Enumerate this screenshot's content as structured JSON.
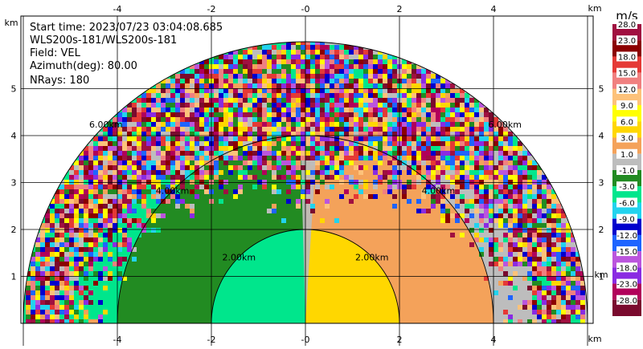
{
  "info": {
    "start_time": "Start time: 2023/07/23 03:04:08.685",
    "instrument": "WLS200s-181/WLS200s-181",
    "field": "Field: VEL",
    "azimuth": "Azimuth(deg): 80.00",
    "nrays": "NRays: 180"
  },
  "chart_data": {
    "type": "heatmap",
    "projection": "rhi-polar",
    "title": "",
    "x_unit": "km",
    "y_unit": "km",
    "x_range": [
      -6,
      6
    ],
    "y_range": [
      0,
      5.9
    ],
    "max_range_km": 6,
    "x_ticks": [
      -4,
      -2,
      0,
      2,
      4
    ],
    "x_tick_labels": [
      "-4",
      "-2",
      "-0",
      "2",
      "4"
    ],
    "y_ticks": [
      1,
      2,
      3,
      4,
      5
    ],
    "y_tick_labels": [
      "1",
      "2",
      "3",
      "4",
      "5"
    ],
    "range_rings": [
      {
        "radius_km": 2,
        "label": "2.00km"
      },
      {
        "radius_km": 4,
        "label": "4.00km"
      },
      {
        "radius_km": 6,
        "label": "6.00km"
      }
    ],
    "grid": true,
    "colorbar": {
      "unit": "m/s",
      "placement": "right",
      "min": -28.0,
      "max": 28.0,
      "bins": [
        {
          "label": "-28.0",
          "color": "#7a0a2e"
        },
        {
          "label": "-23.0",
          "color": "#b1005a"
        },
        {
          "label": "-18.0",
          "color": "#8a2be2"
        },
        {
          "label": "-15.0",
          "color": "#bb55dd"
        },
        {
          "label": "-12.0",
          "color": "#1e64ff"
        },
        {
          "label": "-9.0",
          "color": "#0000cd"
        },
        {
          "label": "-6.0",
          "color": "#22d3ee"
        },
        {
          "label": "-3.0",
          "color": "#00e68c"
        },
        {
          "label": "-1.0",
          "color": "#228b22"
        },
        {
          "label": "1.0",
          "color": "#bdbdbd"
        },
        {
          "label": "3.0",
          "color": "#f4a25a"
        },
        {
          "label": "6.0",
          "color": "#ffd700"
        },
        {
          "label": "9.0",
          "color": "#ffff00"
        },
        {
          "label": "12.0",
          "color": "#fdc27a"
        },
        {
          "label": "15.0",
          "color": "#f08080"
        },
        {
          "label": "18.0",
          "color": "#e53935"
        },
        {
          "label": "23.0",
          "color": "#8b0000"
        },
        {
          "label": "28.0",
          "color": "#a01040"
        }
      ]
    },
    "regions": [
      {
        "side": "left",
        "range_km": [
          0,
          2
        ],
        "velocity": -3.0
      },
      {
        "side": "left",
        "range_km": [
          2,
          4
        ],
        "velocity": -1.0
      },
      {
        "side": "left",
        "range_km": [
          4,
          6
        ],
        "velocity": -3.0
      },
      {
        "side": "right",
        "range_km": [
          0,
          2
        ],
        "velocity": 6.0
      },
      {
        "side": "right",
        "range_km": [
          2,
          4
        ],
        "velocity": 3.0
      },
      {
        "side": "right",
        "range_km": [
          4,
          6
        ],
        "velocity": 1.0
      }
    ]
  }
}
